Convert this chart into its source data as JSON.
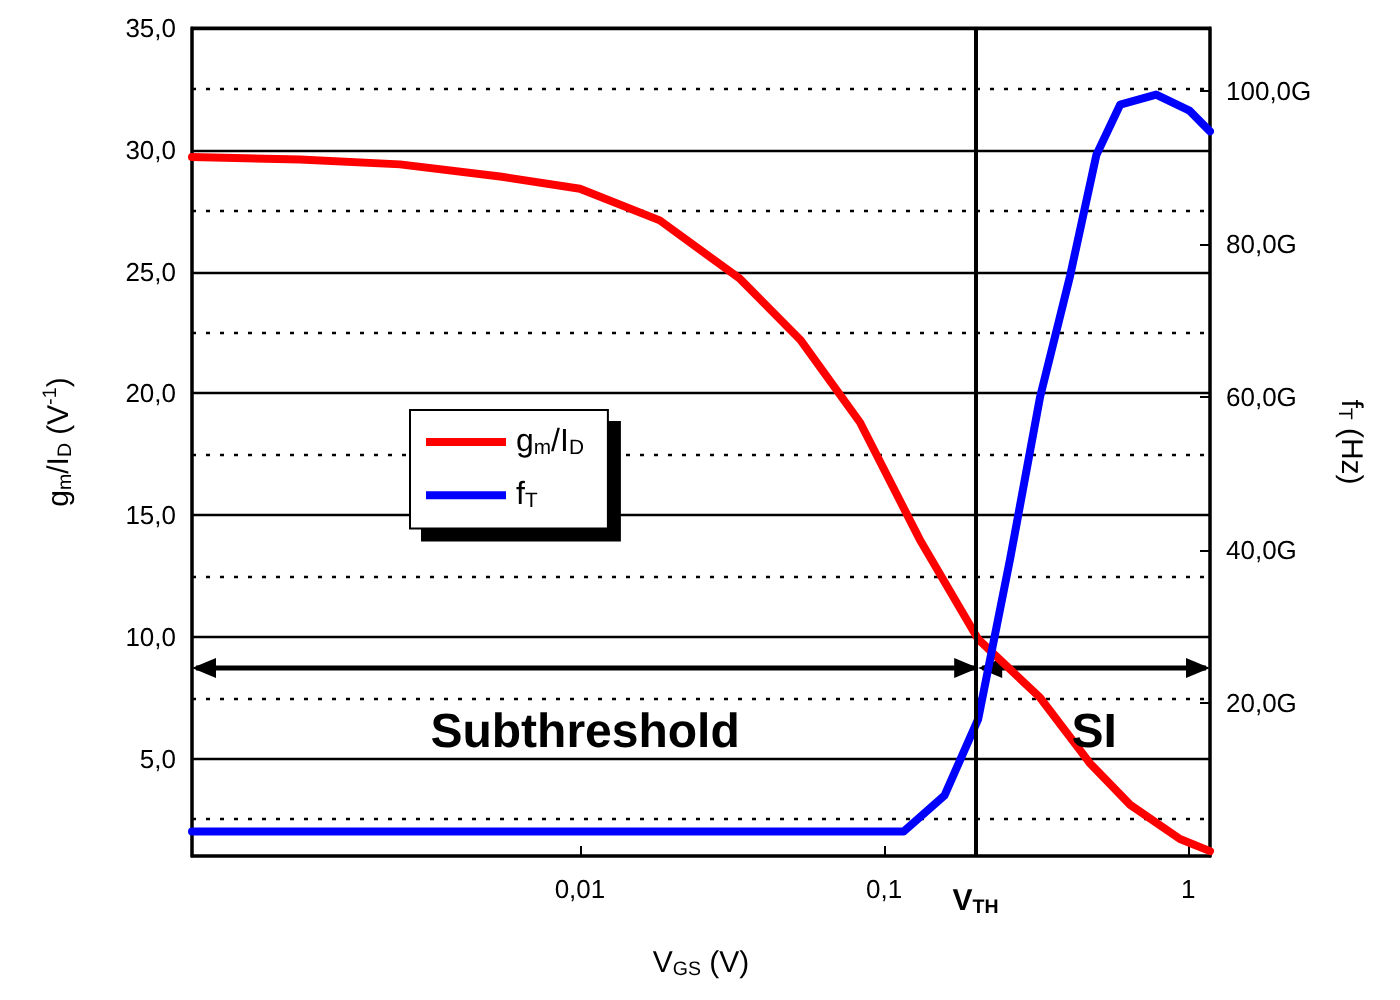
{
  "chart_data": {
    "type": "line",
    "xlabel": "V$_{GS}$ (V)",
    "ylabel": "g$_{m}$/I$_{D}$ (V$^{-1}$)",
    "y2label": "f$_{T}$ (Hz)",
    "log": "x",
    "xlim": [
      0.00053,
      1.18
    ],
    "xticks": [
      {
        "value": 0.01,
        "label": "0,01"
      },
      {
        "value": 0.1,
        "label": "0,1"
      },
      1
    ],
    "ylim": [
      1,
      35
    ],
    "yticks": [
      {
        "value": 5,
        "label": "5,0"
      },
      {
        "value": 10,
        "label": "10,0"
      },
      {
        "value": 15,
        "label": "15,0"
      },
      {
        "value": 20,
        "label": "20,0"
      },
      {
        "value": 25,
        "label": "25,0"
      },
      {
        "value": 30,
        "label": "30,0"
      },
      {
        "value": 35,
        "label": "35,0"
      }
    ],
    "y2lim": [
      0,
      108.2
    ],
    "y2ticks": [
      {
        "value": 20,
        "label": "20,0G"
      },
      {
        "value": 40,
        "label": "40,0G"
      },
      {
        "value": 60,
        "label": "60,0G"
      },
      {
        "value": 80,
        "label": "80,0G"
      },
      {
        "value": 100,
        "label": "100,0G"
      }
    ],
    "grid": "y",
    "legend": "left",
    "marker": "none",
    "line_style": "solid",
    "series": [
      {
        "name": "g$_{m}$/I$_{D}$",
        "color": "#ff0000",
        "x": [
          0.00053,
          0.0012,
          0.00256,
          0.00546,
          0.01,
          0.0183,
          0.0336,
          0.053,
          0.0834,
          0.131,
          0.204,
          0.326,
          0.476,
          0.645,
          0.94,
          1.18
        ],
        "values": [
          29.7,
          29.6,
          29.4,
          28.9,
          28.4,
          27.1,
          24.7,
          22.2,
          18.8,
          14.0,
          9.9,
          7.5,
          4.8,
          3.1,
          1.7,
          1.2
        ]
      },
      {
        "name": "f$_{T}$",
        "color": "#0000ff",
        "axis": "y2",
        "x": [
          0.00053,
          0.116,
          0.158,
          0.204,
          0.26,
          0.326,
          0.409,
          0.499,
          0.598,
          0.785,
          1.01,
          1.18
        ],
        "values": [
          3.2,
          3.2,
          7.9,
          17.9,
          38.9,
          60,
          75.8,
          91.6,
          98.2,
          99.5,
          97.4,
          94.7
        ]
      }
    ],
    "ref_lines": [
      {
        "axis": "x",
        "value": 0.204,
        "label": "V$_{TH}$",
        "color": "#000000"
      }
    ],
    "annotations": [
      "Subthreshold",
      "SI"
    ]
  }
}
